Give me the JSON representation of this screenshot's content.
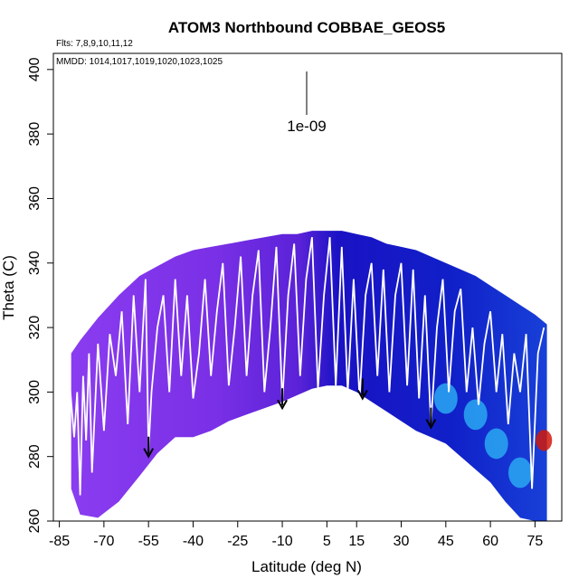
{
  "chart_data": {
    "type": "heatmap",
    "title": "ATOM3 Northbound COBBAE_GEOS5",
    "subtitle_lines": [
      "Flts: 7,8,9,10,11,12",
      "MMDD: 1014,1017,1019,1020,1023,1025"
    ],
    "xlabel": "Latitude (deg N)",
    "ylabel": "Theta (C)",
    "xlim": [
      -87,
      84
    ],
    "ylim": [
      260,
      405
    ],
    "x_ticks": [
      -85,
      -70,
      -55,
      -40,
      -25,
      -10,
      5,
      15,
      30,
      45,
      60,
      75
    ],
    "y_ticks": [
      260,
      280,
      300,
      320,
      340,
      360,
      380,
      400
    ],
    "legend_annotation": "1e-09",
    "grid": false,
    "arrows": [
      {
        "lat": -55,
        "theta": 280
      },
      {
        "lat": -10,
        "theta": 295
      },
      {
        "lat": 17,
        "theta": 298
      },
      {
        "lat": 40,
        "theta": 289
      }
    ],
    "colors": {
      "low": "#7f2fe8",
      "mid": "#0f1cc8",
      "high": "#2aa8f2",
      "peak": "#d01a0a",
      "track": "#ffffff"
    },
    "envelope": {
      "lat": [
        -81,
        -78,
        -72,
        -65,
        -58,
        -52,
        -46,
        -40,
        -34,
        -28,
        -22,
        -16,
        -10,
        -5,
        0,
        5,
        10,
        15,
        20,
        25,
        30,
        35,
        40,
        45,
        50,
        55,
        60,
        65,
        70,
        75,
        79
      ],
      "theta_top": [
        312,
        316,
        323,
        330,
        336,
        339,
        342,
        344,
        345,
        346,
        347,
        348,
        349,
        349,
        350,
        350,
        350,
        349,
        348,
        346,
        345,
        344,
        342,
        340,
        338,
        336,
        333,
        330,
        327,
        324,
        321
      ],
      "theta_bottom": [
        270,
        262,
        261,
        266,
        274,
        281,
        286,
        286,
        288,
        291,
        293,
        295,
        297,
        299,
        301,
        302,
        302,
        300,
        297,
        294,
        291,
        288,
        286,
        284,
        280,
        276,
        272,
        266,
        261,
        260,
        260
      ]
    },
    "hotspots": [
      {
        "lat": 45,
        "theta": 298,
        "value": "high"
      },
      {
        "lat": 55,
        "theta": 293,
        "value": "high"
      },
      {
        "lat": 62,
        "theta": 284,
        "value": "high"
      },
      {
        "lat": 70,
        "theta": 275,
        "value": "high"
      },
      {
        "lat": 78,
        "theta": 285,
        "value": "peak"
      }
    ],
    "flight_track": {
      "lat": [
        -82,
        -80,
        -79,
        -78,
        -77,
        -76,
        -75,
        -74,
        -73,
        -72,
        -70,
        -68,
        -66,
        -64,
        -62,
        -60,
        -58,
        -56,
        -55,
        -54,
        -52,
        -50,
        -48,
        -46,
        -44,
        -42,
        -40,
        -38,
        -36,
        -34,
        -32,
        -30,
        -28,
        -26,
        -24,
        -22,
        -20,
        -18,
        -16,
        -14,
        -12,
        -10,
        -8,
        -6,
        -4,
        -2,
        0,
        2,
        4,
        6,
        8,
        10,
        12,
        14,
        16,
        18,
        20,
        22,
        24,
        26,
        28,
        30,
        32,
        34,
        36,
        38,
        40,
        42,
        44,
        46,
        48,
        50,
        52,
        54,
        56,
        58,
        60,
        62,
        64,
        66,
        68,
        70,
        72,
        74,
        76,
        78
      ],
      "theta": [
        308,
        286,
        300,
        268,
        305,
        285,
        312,
        275,
        295,
        315,
        288,
        318,
        305,
        325,
        290,
        330,
        300,
        335,
        282,
        300,
        320,
        330,
        300,
        335,
        305,
        330,
        298,
        312,
        335,
        305,
        325,
        340,
        302,
        320,
        342,
        305,
        330,
        344,
        300,
        320,
        345,
        297,
        330,
        346,
        305,
        335,
        348,
        301,
        330,
        348,
        302,
        345,
        300,
        335,
        298,
        330,
        340,
        305,
        338,
        300,
        330,
        340,
        302,
        338,
        298,
        330,
        290,
        320,
        335,
        300,
        325,
        332,
        300,
        320,
        296,
        315,
        325,
        300,
        318,
        290,
        312,
        300,
        318,
        270,
        312,
        320
      ]
    }
  }
}
